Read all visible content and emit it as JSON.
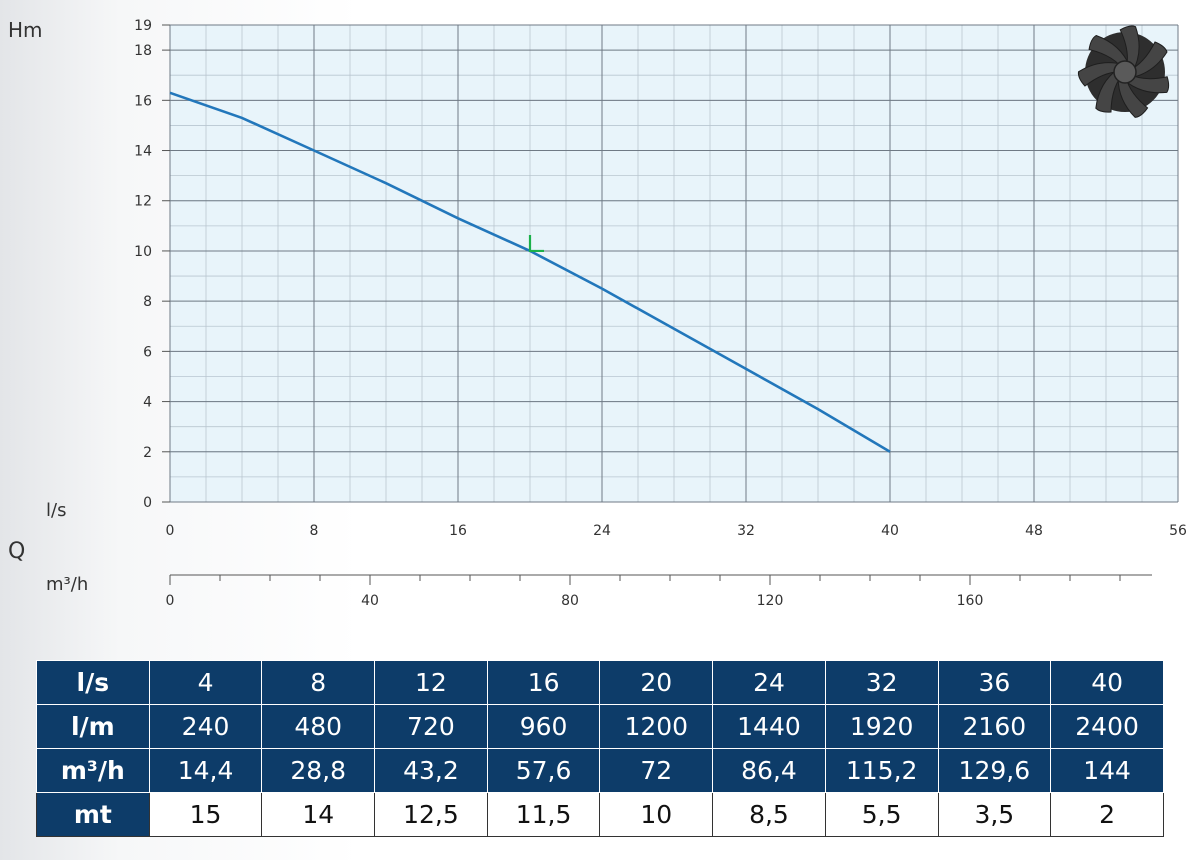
{
  "labels": {
    "hm": "Hm",
    "ls": "l/s",
    "q": "Q",
    "m3h": "m³/h"
  },
  "chart_data": {
    "type": "line",
    "x_unit": "l/s",
    "y_unit": "Hm",
    "xlim": [
      0,
      56
    ],
    "ylim": [
      0,
      19
    ],
    "x_ticks": [
      0,
      8,
      16,
      24,
      32,
      40,
      48,
      56
    ],
    "y_ticks": [
      0,
      2,
      4,
      6,
      8,
      10,
      12,
      14,
      16,
      18,
      19
    ],
    "secondary_x_unit": "m³/h",
    "secondary_x_ticks": [
      0,
      40,
      80,
      120,
      160
    ],
    "series": [
      {
        "color": "#2277bb",
        "points": [
          [
            0,
            16.3
          ],
          [
            4,
            15.3
          ],
          [
            8,
            14
          ],
          [
            12,
            12.7
          ],
          [
            16,
            11.3
          ],
          [
            20,
            10
          ],
          [
            24,
            8.5
          ],
          [
            28,
            6.9
          ],
          [
            32,
            5.3
          ],
          [
            36,
            3.7
          ],
          [
            40,
            2
          ]
        ]
      }
    ],
    "marker": {
      "x": 20,
      "y": 10,
      "color": "#1bb04a"
    },
    "grid": true,
    "plot_background": "#e8f4fa",
    "grid_color": "#9aa6b2"
  },
  "impeller_icon": "impeller-icon",
  "table": {
    "header_color": "#0d3c69",
    "rows": [
      {
        "label": "l/s",
        "values": [
          "4",
          "8",
          "12",
          "16",
          "20",
          "24",
          "32",
          "36",
          "40"
        ]
      },
      {
        "label": "l/m",
        "values": [
          "240",
          "480",
          "720",
          "960",
          "1200",
          "1440",
          "1920",
          "2160",
          "2400"
        ]
      },
      {
        "label": "m³/h",
        "values": [
          "14,4",
          "28,8",
          "43,2",
          "57,6",
          "72",
          "86,4",
          "115,2",
          "129,6",
          "144"
        ]
      },
      {
        "label": "mt",
        "values": [
          "15",
          "14",
          "12,5",
          "11,5",
          "10",
          "8,5",
          "5,5",
          "3,5",
          "2"
        ]
      }
    ]
  }
}
